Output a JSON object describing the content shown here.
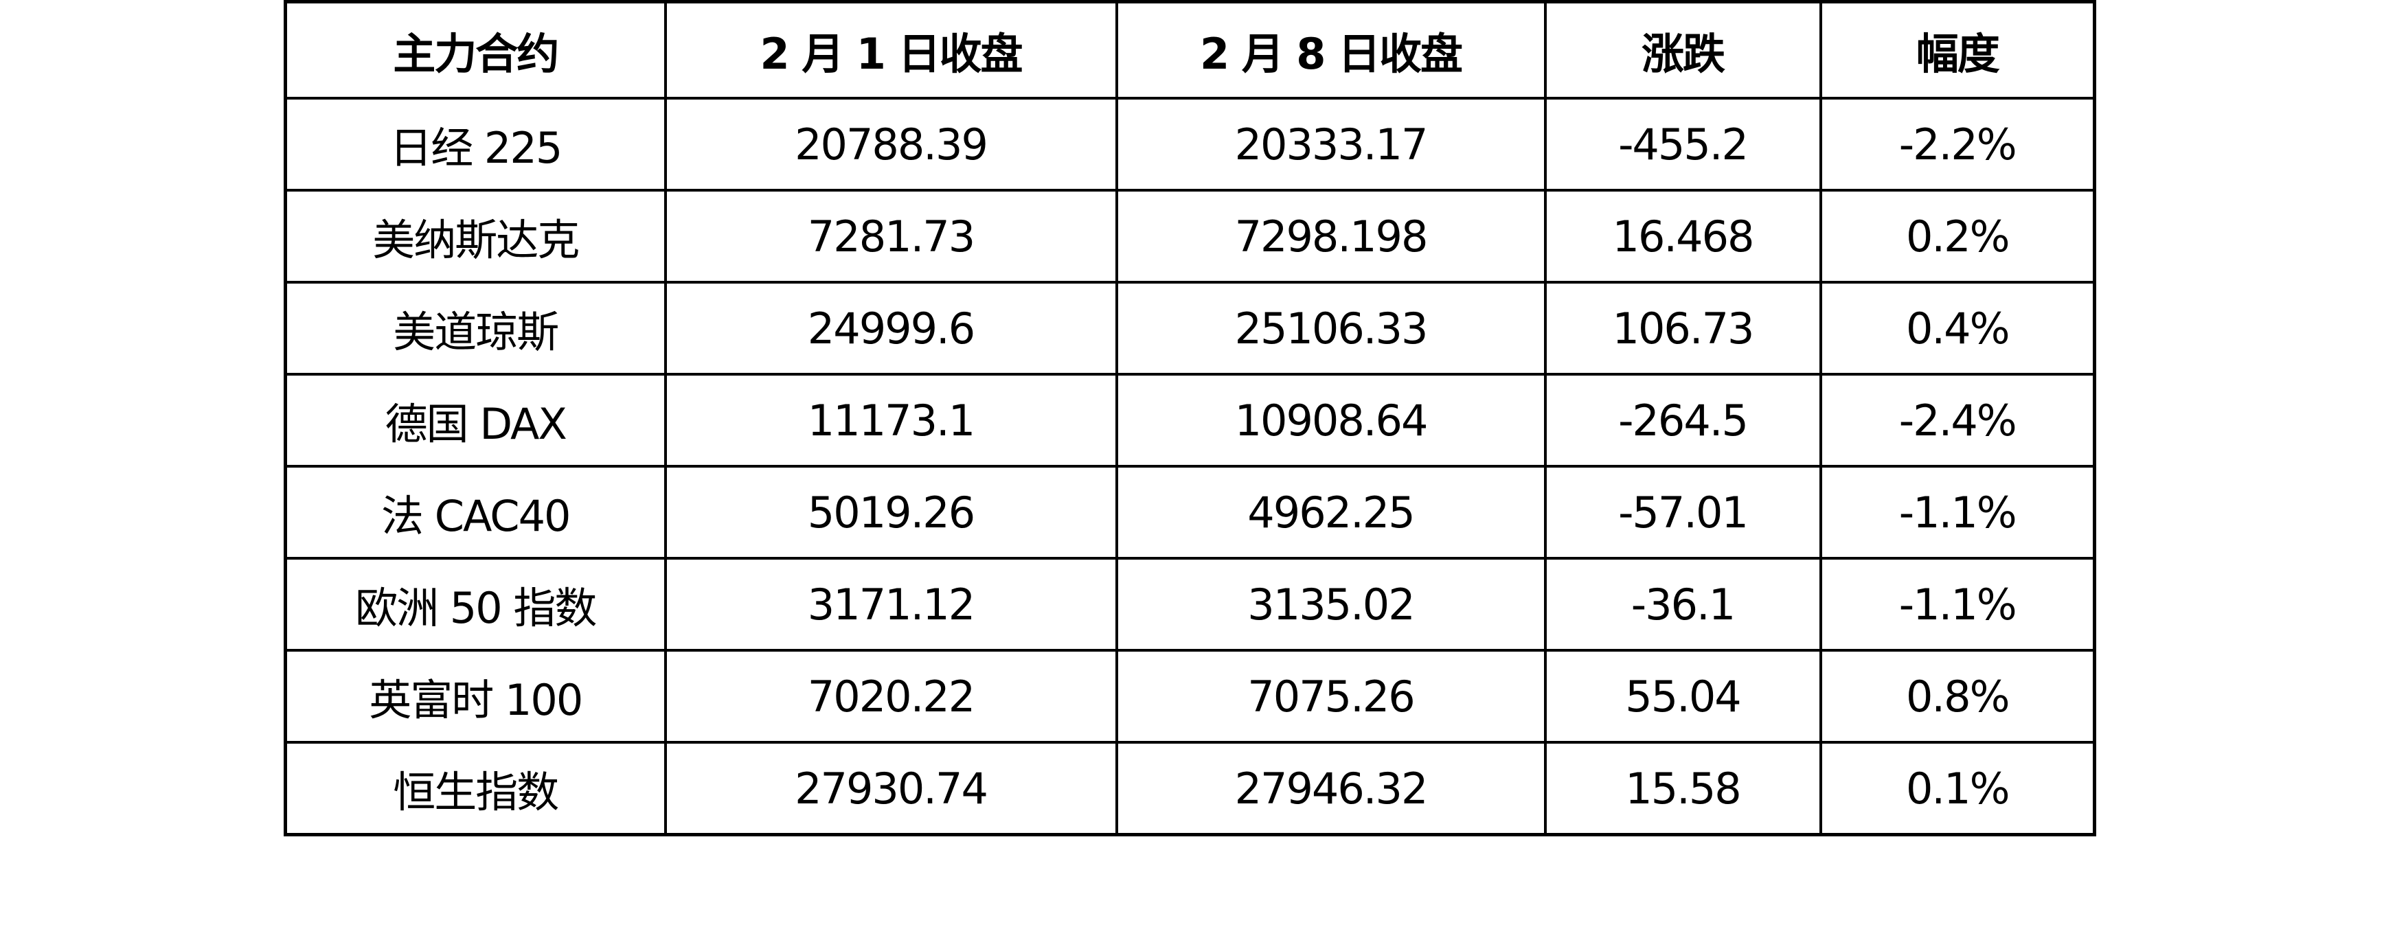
{
  "table": {
    "headers": [
      "主力合约",
      "2 月 1 日收盘",
      "2 月 8 日收盘",
      "涨跌",
      "幅度"
    ],
    "rows": [
      [
        "日经 225",
        "20788.39",
        "20333.17",
        "-455.2",
        "-2.2%"
      ],
      [
        "美纳斯达克",
        "7281.73",
        "7298.198",
        "16.468",
        "0.2%"
      ],
      [
        "美道琼斯",
        "24999.6",
        "25106.33",
        "106.73",
        "0.4%"
      ],
      [
        "德国 DAX",
        "11173.1",
        "10908.64",
        "-264.5",
        "-2.4%"
      ],
      [
        "法 CAC40",
        "5019.26",
        "4962.25",
        "-57.01",
        "-1.1%"
      ],
      [
        "欧洲 50 指数",
        "3171.12",
        "3135.02",
        "-36.1",
        "-1.1%"
      ],
      [
        "英富时 100",
        "7020.22",
        "7075.26",
        "55.04",
        "0.8%"
      ],
      [
        "恒生指数",
        "27930.74",
        "27946.32",
        "15.58",
        "0.1%"
      ]
    ]
  }
}
